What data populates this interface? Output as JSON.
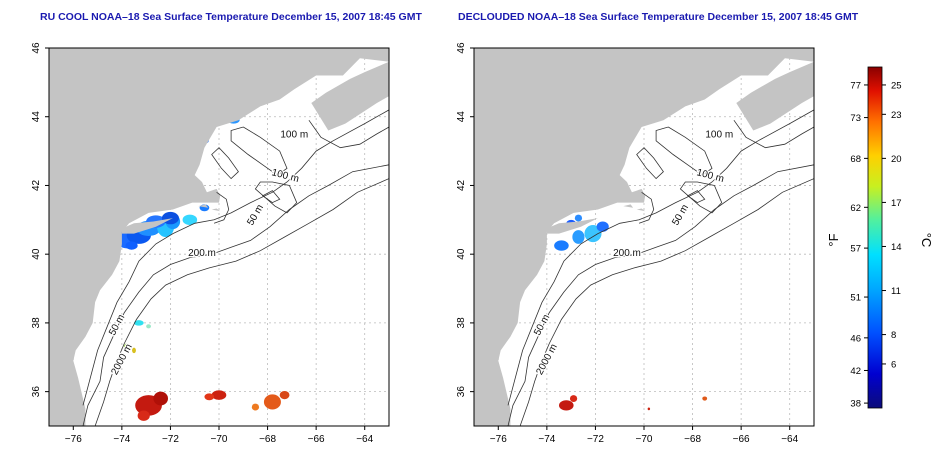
{
  "left_map": {
    "title": "RU COOL NOAA–18 Sea Surface Temperature December 15, 2007 18:45 GMT",
    "x_ticks": [
      "−76",
      "−74",
      "−72",
      "−70",
      "−68",
      "−66",
      "−64"
    ],
    "y_ticks": [
      "36",
      "38",
      "40",
      "42",
      "44",
      "46"
    ],
    "contour_labels": [
      "100 m",
      "100 m",
      "50 m",
      "200 m",
      "50 m",
      "2000 m"
    ]
  },
  "right_map": {
    "title": "DECLOUDED NOAA–18 Sea Surface Temperature December 15, 2007 18:45 GMT",
    "x_ticks": [
      "−76",
      "−74",
      "−72",
      "−70",
      "−68",
      "−66",
      "−64"
    ],
    "y_ticks": [
      "36",
      "38",
      "40",
      "42",
      "44",
      "46"
    ],
    "contour_labels": [
      "100 m",
      "100 m",
      "50 m",
      "200 m",
      "50 m",
      "2000 m"
    ]
  },
  "colorbar": {
    "fahrenheit_label": "°F",
    "celsius_label": "°C",
    "fahrenheit_ticks": [
      "77",
      "73",
      "68",
      "62",
      "57",
      "51",
      "46",
      "42",
      "38"
    ],
    "celsius_ticks": [
      "25",
      "23",
      "20",
      "17",
      "14",
      "11",
      "8",
      "6"
    ]
  },
  "colors": {
    "land": "#c4c4c4",
    "ocean": "#ffffff",
    "title": "#1a1ab0",
    "contour": "#333333",
    "grid": "#bbbbbb"
  }
}
